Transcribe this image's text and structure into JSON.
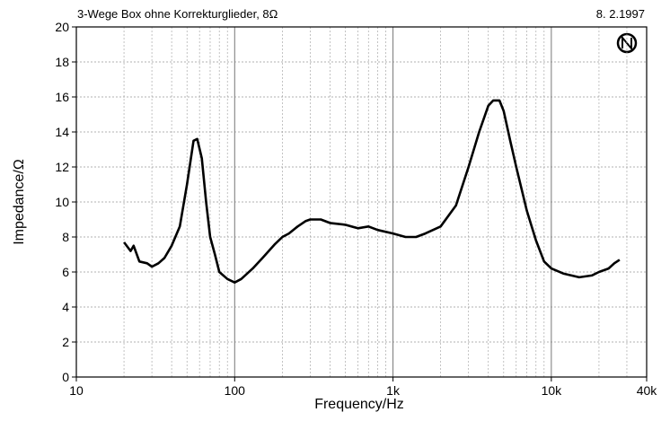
{
  "chart_data": {
    "type": "line",
    "title": "3-Wege Box ohne Korrekturglieder, 8Ω",
    "date": "8. 2.1997",
    "x_label": "Frequency/Hz",
    "y_label": "Impedance/Ω",
    "log_x": true,
    "grid": true,
    "xlim": [
      10,
      40000
    ],
    "ylim": [
      0,
      20
    ],
    "xticks": [
      10,
      100,
      {
        "value": 1000,
        "label": "1k"
      },
      {
        "value": 10000,
        "label": "10k"
      },
      {
        "value": 40000,
        "label": "40k"
      }
    ],
    "xminor_ticks": [
      20,
      30,
      40,
      50,
      60,
      70,
      80,
      90,
      200,
      300,
      400,
      500,
      600,
      700,
      800,
      900,
      2000,
      3000,
      4000,
      5000,
      6000,
      7000,
      8000,
      9000,
      20000,
      30000
    ],
    "yticks": [
      0,
      2,
      4,
      6,
      8,
      10,
      12,
      14,
      16,
      18,
      20
    ],
    "series": [
      {
        "name": "Impedance",
        "color": "#000000",
        "x": [
          20,
          22,
          23,
          25,
          28,
          30,
          33,
          36,
          40,
          45,
          50,
          55,
          58,
          62,
          66,
          70,
          75,
          80,
          90,
          100,
          110,
          130,
          150,
          180,
          200,
          220,
          250,
          280,
          300,
          350,
          400,
          500,
          600,
          700,
          800,
          1000,
          1200,
          1400,
          1600,
          2000,
          2500,
          3000,
          3500,
          4000,
          4300,
          4700,
          5000,
          5500,
          6000,
          7000,
          8000,
          9000,
          10000,
          12000,
          15000,
          18000,
          20000,
          23000,
          25000,
          27000
        ],
        "values": [
          7.7,
          7.2,
          7.5,
          6.6,
          6.5,
          6.3,
          6.5,
          6.8,
          7.5,
          8.6,
          11,
          13.5,
          13.6,
          12.5,
          10,
          8,
          7,
          6,
          5.6,
          5.4,
          5.6,
          6.2,
          6.8,
          7.6,
          8.0,
          8.2,
          8.6,
          8.9,
          9.0,
          9.0,
          8.8,
          8.7,
          8.5,
          8.6,
          8.4,
          8.2,
          8.0,
          8.0,
          8.2,
          8.6,
          9.8,
          12,
          14,
          15.5,
          15.8,
          15.8,
          15.2,
          13.5,
          12,
          9.5,
          7.8,
          6.6,
          6.2,
          5.9,
          5.7,
          5.8,
          6.0,
          6.2,
          6.5,
          6.7
        ]
      }
    ]
  }
}
